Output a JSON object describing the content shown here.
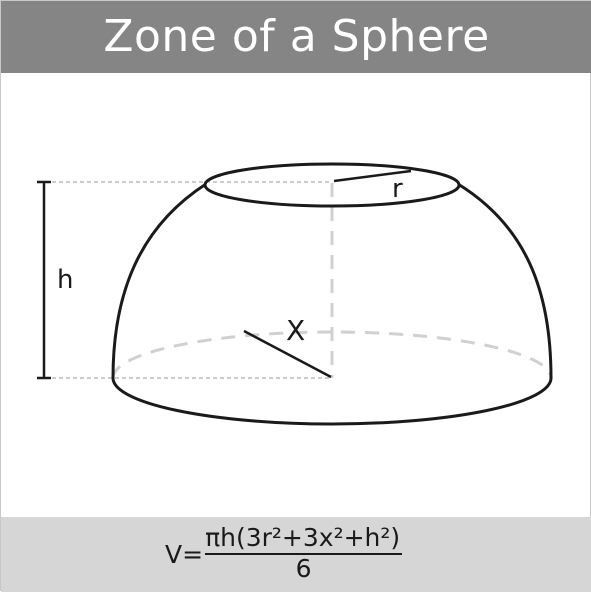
{
  "title": "Zone of a Sphere",
  "labels": {
    "height": "h",
    "top_radius": "r",
    "base_radius": "X"
  },
  "formula": {
    "lhs": "V=",
    "numerator": "πh(3r²+3x²+h²)",
    "denominator": "6"
  },
  "colors": {
    "title_bar": "#858585",
    "formula_bar": "#d6d6d6",
    "stroke": "#1a1a1a",
    "hidden_lines": "#d0d0d0",
    "guide_lines": "#999999"
  }
}
